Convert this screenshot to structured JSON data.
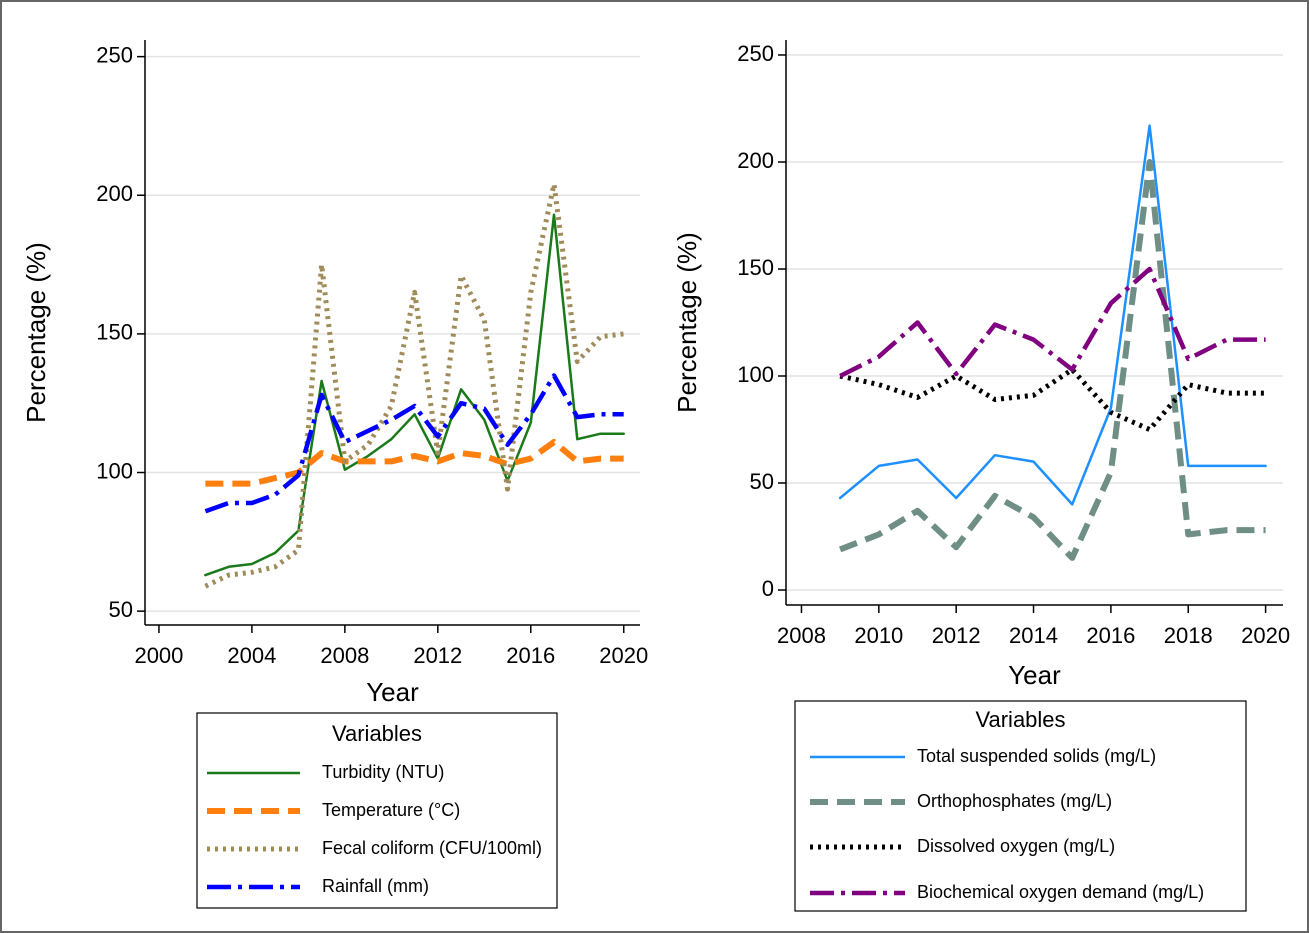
{
  "chart_data": [
    {
      "type": "line",
      "xlabel": "Year",
      "ylabel": "Percentage (%)",
      "legend_title": "Variables",
      "x": [
        2002,
        2003,
        2004,
        2005,
        2006,
        2007,
        2008,
        2009,
        2010,
        2011,
        2012,
        2013,
        2014,
        2015,
        2016,
        2017,
        2018,
        2019,
        2020
      ],
      "xlim": [
        1999.4,
        2020.7
      ],
      "xticks": [
        2000,
        2004,
        2008,
        2012,
        2016,
        2020
      ],
      "ylim": [
        45,
        256
      ],
      "yticks": [
        50,
        100,
        150,
        200,
        250
      ],
      "grid": true,
      "series": [
        {
          "name": "Turbidity (NTU)",
          "color": "#1a7a1a",
          "style": "solid",
          "values": [
            63,
            66,
            67,
            71,
            79,
            133,
            101,
            106,
            112,
            121,
            105,
            130,
            119,
            97,
            118,
            193,
            112,
            114,
            114
          ]
        },
        {
          "name": "Temperature (°C)",
          "color": "#ff7f0e",
          "style": "dash",
          "values": [
            96,
            96,
            96,
            98,
            100,
            107,
            104,
            104,
            104,
            106,
            104,
            107,
            106,
            103,
            105,
            111,
            104,
            105,
            105
          ]
        },
        {
          "name": "Fecal coliform (CFU/100ml)",
          "color": "#a08c5a",
          "style": "dot",
          "values": [
            59,
            63,
            64,
            66,
            72,
            175,
            104,
            110,
            124,
            165,
            107,
            171,
            155,
            94,
            165,
            204,
            140,
            149,
            150
          ]
        },
        {
          "name": "Rainfall (mm)",
          "color": "#0000ff",
          "style": "dashdot",
          "values": [
            86,
            89,
            89,
            92,
            99,
            128,
            111,
            115,
            119,
            124,
            113,
            125,
            123,
            110,
            121,
            135,
            120,
            121,
            121
          ]
        }
      ]
    },
    {
      "type": "line",
      "xlabel": "Year",
      "ylabel": "Percentage (%)",
      "legend_title": "Variables",
      "x": [
        2009,
        2010,
        2011,
        2012,
        2013,
        2014,
        2015,
        2016,
        2017,
        2018,
        2019,
        2020
      ],
      "xlim": [
        2007.6,
        2020.45
      ],
      "xticks": [
        2008,
        2010,
        2012,
        2014,
        2016,
        2018,
        2020
      ],
      "ylim": [
        -7,
        257
      ],
      "yticks": [
        0,
        50,
        100,
        150,
        200,
        250
      ],
      "grid": true,
      "series": [
        {
          "name": "Total suspended solids (mg/L)",
          "color": "#1e90ff",
          "style": "solid",
          "values": [
            43,
            58,
            61,
            43,
            63,
            60,
            40,
            85,
            217,
            58,
            58,
            58
          ]
        },
        {
          "name": "Orthophosphates (mg/L)",
          "color": "#6f8f86",
          "style": "dash",
          "values": [
            19,
            26,
            37,
            20,
            44,
            34,
            15,
            55,
            200,
            26,
            28,
            28
          ]
        },
        {
          "name": "Dissolved oxygen (mg/L)",
          "color": "#000000",
          "style": "dot",
          "values": [
            100,
            96,
            90,
            100,
            89,
            91,
            103,
            83,
            75,
            96,
            92,
            92
          ]
        },
        {
          "name": "Biochemical oxygen demand (mg/L)",
          "color": "#800080",
          "style": "dashdot",
          "values": [
            100,
            109,
            125,
            101,
            124,
            117,
            103,
            134,
            150,
            108,
            117,
            117
          ]
        }
      ]
    }
  ]
}
